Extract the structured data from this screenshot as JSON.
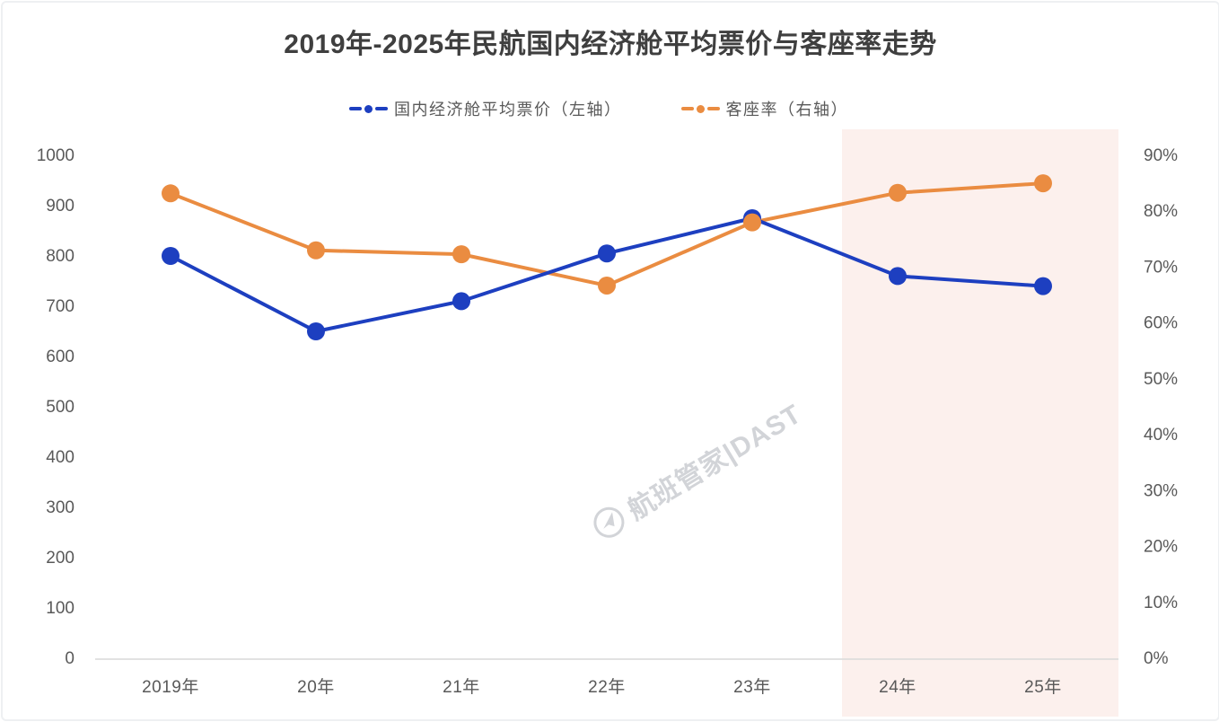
{
  "chart_data": {
    "type": "line",
    "title": "2019年-2025年民航国内经济舱平均票价与客座率走势",
    "categories": [
      "2019年",
      "20年",
      "21年",
      "22年",
      "23年",
      "24年",
      "25年"
    ],
    "series": [
      {
        "name": "国内经济舱平均票价（左轴）",
        "axis": "left",
        "color": "#1d3fc0",
        "values": [
          800,
          650,
          710,
          805,
          875,
          760,
          740
        ]
      },
      {
        "name": "客座率（右轴）",
        "axis": "right",
        "color": "#ea8c41",
        "values": [
          83.2,
          73.0,
          72.3,
          66.7,
          78.0,
          83.3,
          85.0
        ]
      }
    ],
    "left_axis": {
      "min": 0,
      "max": 1000,
      "step": 100
    },
    "right_axis": {
      "min": 0,
      "max": 90,
      "step": 10,
      "suffix": "%"
    },
    "forecast_region": {
      "start_category": "24年",
      "end_category": "25年",
      "color": "#fcf0ed"
    },
    "legend_position": "top",
    "grid": false,
    "watermark": "航班管家|DAST",
    "colors": {
      "title_text": "#3f3f3f",
      "axis_text": "#595959",
      "axis_line": "#d9d9d9",
      "watermark": "#c3c6cb"
    }
  }
}
